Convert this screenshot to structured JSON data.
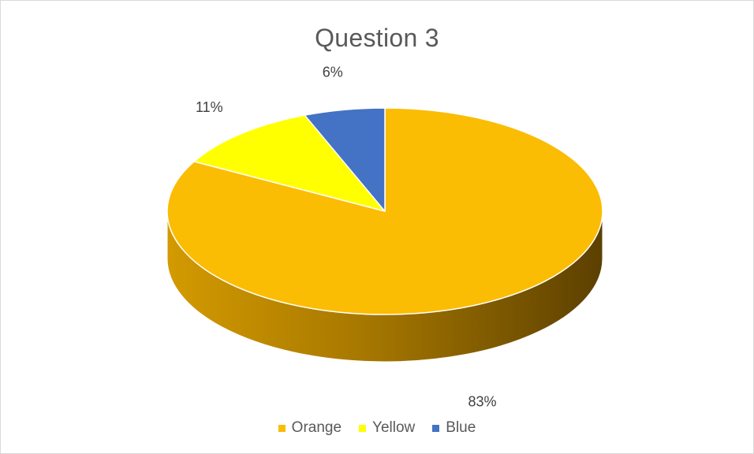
{
  "chart_data": {
    "type": "pie",
    "title": "Question 3",
    "categories": [
      "Orange",
      "Yellow",
      "Blue"
    ],
    "values": [
      83,
      11,
      6
    ],
    "labels": [
      "83%",
      "11%",
      "6%"
    ],
    "colors": [
      "#FBBC04",
      "#FFFF00",
      "#4472C4"
    ],
    "style": "3d",
    "legend": "bottom"
  }
}
